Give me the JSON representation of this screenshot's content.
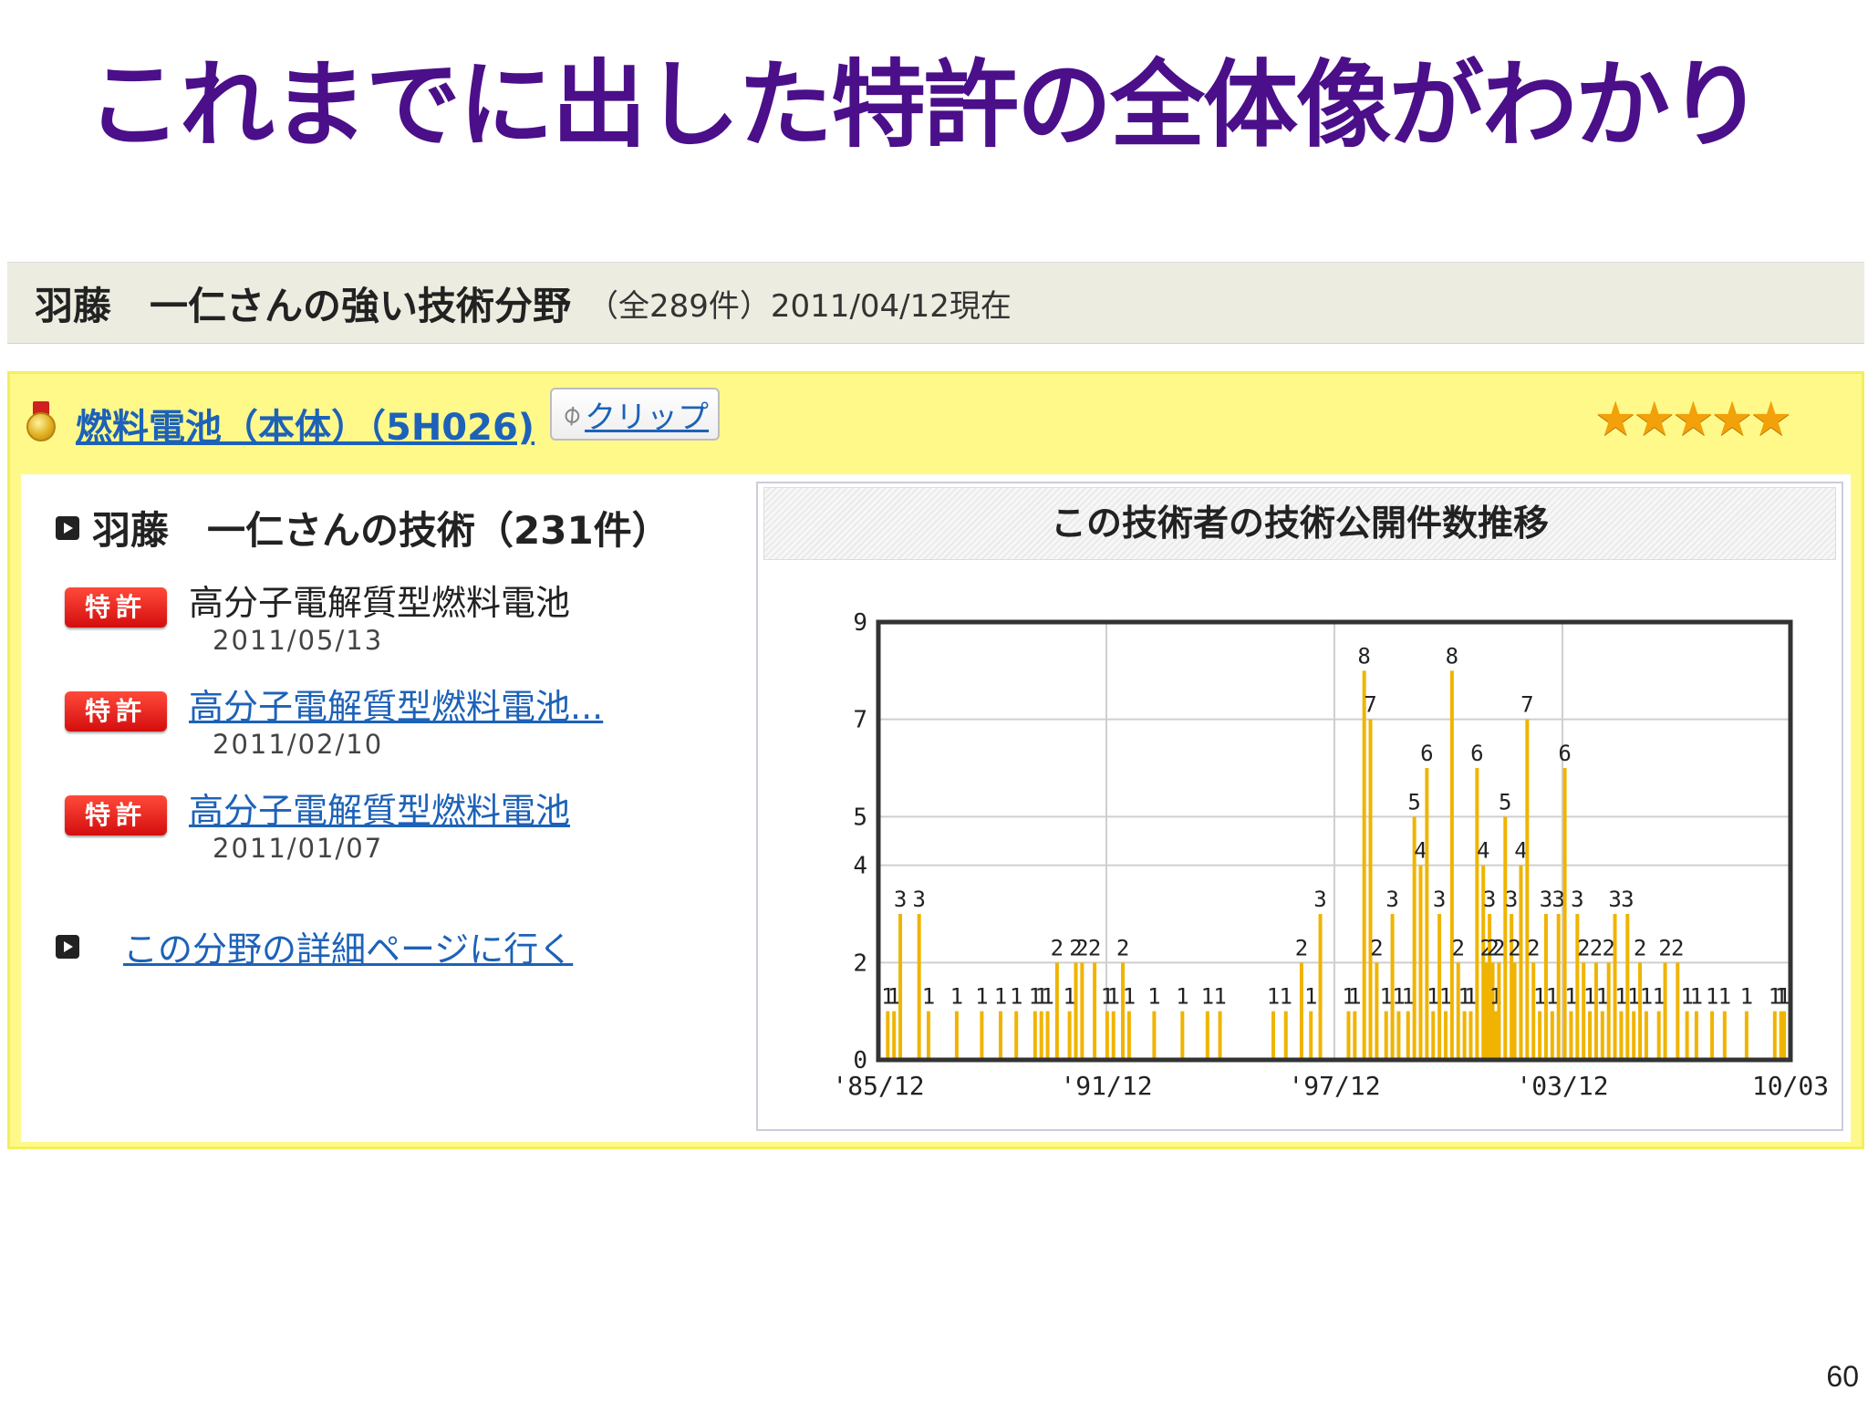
{
  "slide": {
    "title": "これまでに出した特許の全体像がわかり",
    "page_number": "60"
  },
  "header": {
    "name": "羽藤　一仁さんの強い技術分野",
    "meta": "（全289件）2011/04/12現在"
  },
  "field": {
    "label": "燃料電池（本体）（5H026)",
    "clip_label": "クリップ",
    "stars": "★★★★★",
    "rating": 5
  },
  "technologies": {
    "heading": "羽藤　一仁さんの技術（231件）",
    "items": [
      {
        "badge": "特許",
        "title": "高分子電解質型燃料電池",
        "date": "2011/05/13"
      },
      {
        "badge": "特許",
        "title": "高分子電解質型燃料電池...",
        "date": "2011/02/10"
      },
      {
        "badge": "特許",
        "title": "高分子電解質型燃料電池",
        "date": "2011/01/07"
      }
    ],
    "detail_link": "この分野の詳細ページに行く"
  },
  "chart_data": {
    "type": "bar",
    "title": "この技術者の技術公開件数推移",
    "x_tick_labels": [
      "'85/12",
      "'91/12",
      "'97/12",
      "'03/12",
      "10/03"
    ],
    "y_tick_labels": [
      "0",
      "2",
      "4",
      "5",
      "7",
      "9"
    ],
    "ylim": [
      0,
      9
    ],
    "xlim": [
      "1985-12",
      "2010-03"
    ],
    "grid": true,
    "color": "#f0b400",
    "points": [
      {
        "x": "1986-03",
        "y": 1
      },
      {
        "x": "1986-05",
        "y": 1
      },
      {
        "x": "1986-07",
        "y": 3
      },
      {
        "x": "1987-01",
        "y": 3
      },
      {
        "x": "1987-04",
        "y": 1
      },
      {
        "x": "1988-01",
        "y": 1
      },
      {
        "x": "1988-09",
        "y": 1
      },
      {
        "x": "1989-03",
        "y": 1
      },
      {
        "x": "1989-08",
        "y": 1
      },
      {
        "x": "1990-02",
        "y": 1
      },
      {
        "x": "1990-04",
        "y": 1
      },
      {
        "x": "1990-06",
        "y": 1
      },
      {
        "x": "1990-09",
        "y": 2
      },
      {
        "x": "1991-01",
        "y": 1
      },
      {
        "x": "1991-03",
        "y": 2
      },
      {
        "x": "1991-05",
        "y": 2
      },
      {
        "x": "1991-09",
        "y": 2
      },
      {
        "x": "1992-01",
        "y": 1
      },
      {
        "x": "1992-03",
        "y": 1
      },
      {
        "x": "1992-06",
        "y": 2
      },
      {
        "x": "1992-08",
        "y": 1
      },
      {
        "x": "1993-04",
        "y": 1
      },
      {
        "x": "1994-01",
        "y": 1
      },
      {
        "x": "1994-09",
        "y": 1
      },
      {
        "x": "1995-01",
        "y": 1
      },
      {
        "x": "1996-06",
        "y": 1
      },
      {
        "x": "1996-10",
        "y": 1
      },
      {
        "x": "1997-03",
        "y": 2
      },
      {
        "x": "1997-06",
        "y": 1
      },
      {
        "x": "1997-09",
        "y": 3
      },
      {
        "x": "1998-06",
        "y": 1
      },
      {
        "x": "1998-08",
        "y": 1
      },
      {
        "x": "1998-11",
        "y": 8
      },
      {
        "x": "1999-01",
        "y": 7
      },
      {
        "x": "1999-03",
        "y": 2
      },
      {
        "x": "1999-06",
        "y": 1
      },
      {
        "x": "1999-08",
        "y": 3
      },
      {
        "x": "1999-10",
        "y": 1
      },
      {
        "x": "2000-01",
        "y": 1
      },
      {
        "x": "2000-03",
        "y": 5
      },
      {
        "x": "2000-05",
        "y": 4
      },
      {
        "x": "2000-07",
        "y": 6
      },
      {
        "x": "2000-09",
        "y": 1
      },
      {
        "x": "2000-11",
        "y": 3
      },
      {
        "x": "2001-01",
        "y": 1
      },
      {
        "x": "2001-03",
        "y": 8
      },
      {
        "x": "2001-05",
        "y": 2
      },
      {
        "x": "2001-07",
        "y": 1
      },
      {
        "x": "2001-09",
        "y": 1
      },
      {
        "x": "2001-11",
        "y": 6
      },
      {
        "x": "2002-01",
        "y": 4
      },
      {
        "x": "2002-02",
        "y": 2
      },
      {
        "x": "2002-03",
        "y": 3
      },
      {
        "x": "2002-04",
        "y": 2
      },
      {
        "x": "2002-05",
        "y": 1
      },
      {
        "x": "2002-06",
        "y": 2
      },
      {
        "x": "2002-08",
        "y": 5
      },
      {
        "x": "2002-10",
        "y": 3
      },
      {
        "x": "2002-11",
        "y": 2
      },
      {
        "x": "2003-01",
        "y": 4
      },
      {
        "x": "2003-03",
        "y": 7
      },
      {
        "x": "2003-05",
        "y": 2
      },
      {
        "x": "2003-07",
        "y": 1
      },
      {
        "x": "2003-09",
        "y": 3
      },
      {
        "x": "2003-11",
        "y": 1
      },
      {
        "x": "2004-01",
        "y": 3
      },
      {
        "x": "2004-03",
        "y": 6
      },
      {
        "x": "2004-05",
        "y": 1
      },
      {
        "x": "2004-07",
        "y": 3
      },
      {
        "x": "2004-09",
        "y": 2
      },
      {
        "x": "2004-11",
        "y": 1
      },
      {
        "x": "2005-01",
        "y": 2
      },
      {
        "x": "2005-03",
        "y": 1
      },
      {
        "x": "2005-05",
        "y": 2
      },
      {
        "x": "2005-07",
        "y": 3
      },
      {
        "x": "2005-09",
        "y": 1
      },
      {
        "x": "2005-11",
        "y": 3
      },
      {
        "x": "2006-01",
        "y": 1
      },
      {
        "x": "2006-03",
        "y": 2
      },
      {
        "x": "2006-05",
        "y": 1
      },
      {
        "x": "2006-09",
        "y": 1
      },
      {
        "x": "2006-11",
        "y": 2
      },
      {
        "x": "2007-03",
        "y": 2
      },
      {
        "x": "2007-06",
        "y": 1
      },
      {
        "x": "2007-09",
        "y": 1
      },
      {
        "x": "2008-02",
        "y": 1
      },
      {
        "x": "2008-06",
        "y": 1
      },
      {
        "x": "2009-01",
        "y": 1
      },
      {
        "x": "2009-10",
        "y": 1
      },
      {
        "x": "2009-12",
        "y": 1
      },
      {
        "x": "2010-01",
        "y": 1
      }
    ]
  }
}
